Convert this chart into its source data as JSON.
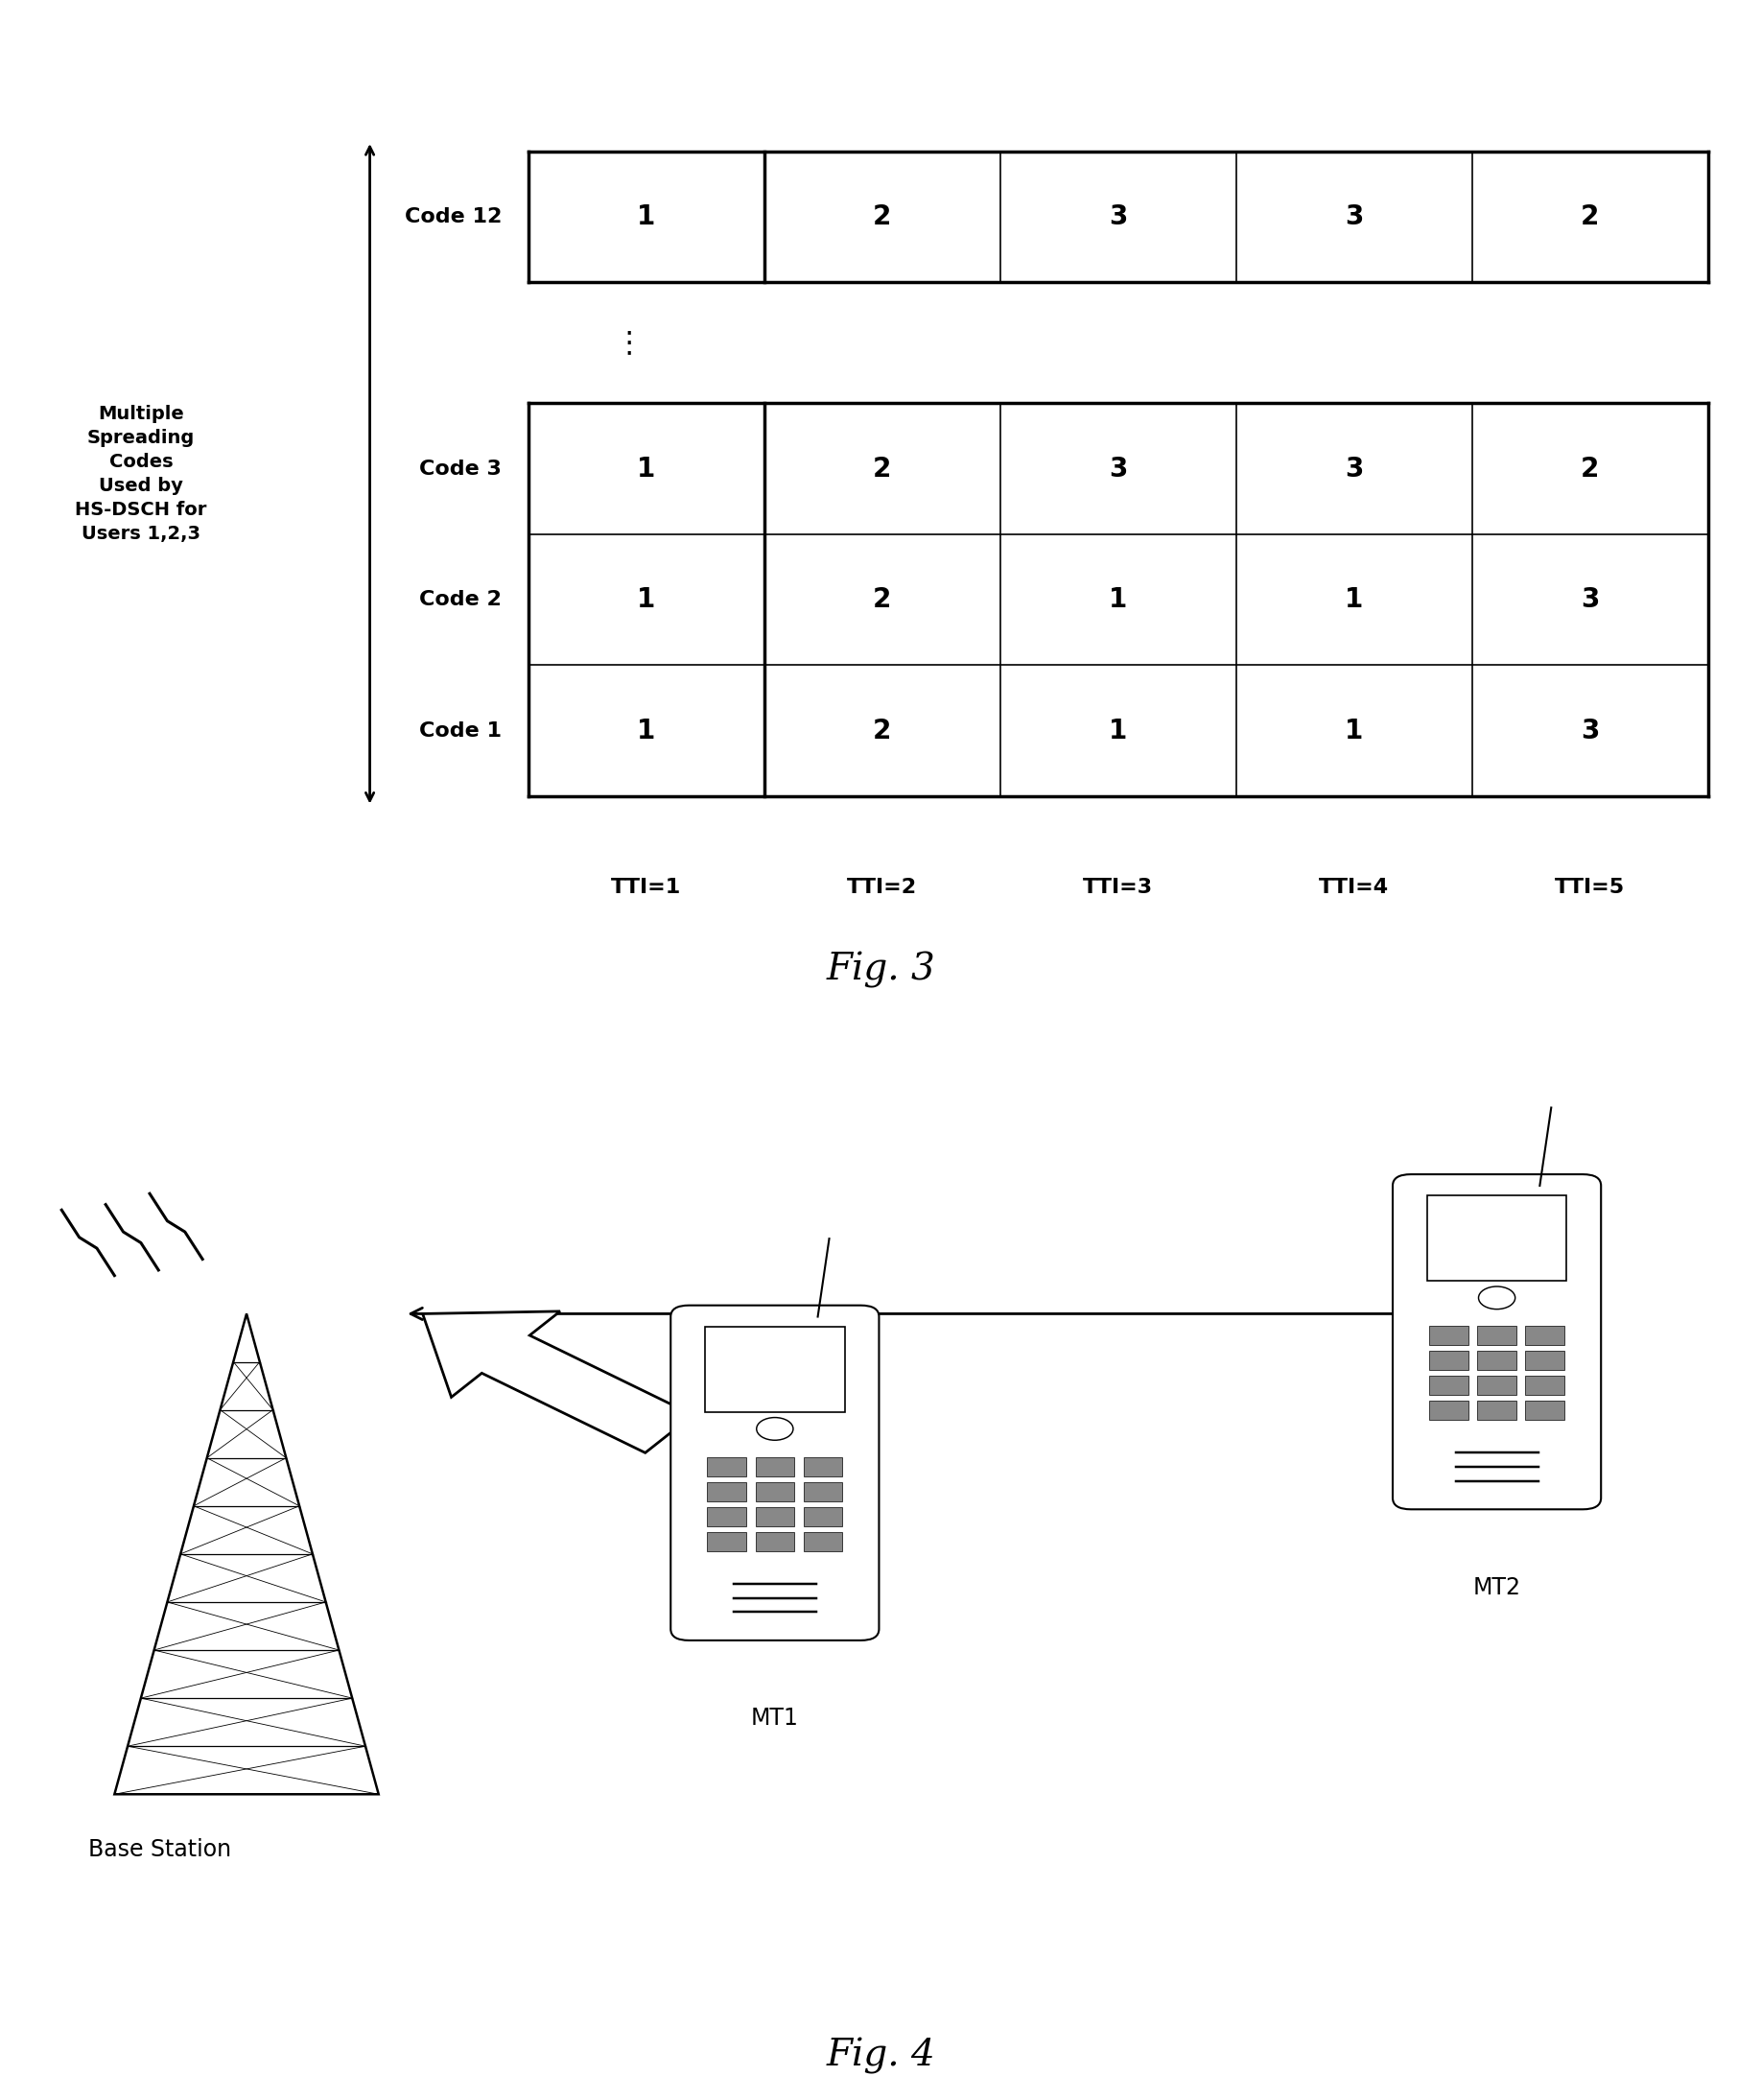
{
  "fig3_title": "Fig. 3",
  "fig4_title": "Fig. 4",
  "left_label": "Multiple\nSpreading\nCodes\nUsed by\nHS-DSCH for\nUsers 1,2,3",
  "tti_labels": [
    "TTI=1",
    "TTI=2",
    "TTI=3",
    "TTI=4",
    "TTI=5"
  ],
  "table_data": {
    "Code 12": [
      1,
      2,
      3,
      3,
      2
    ],
    "Code 3": [
      1,
      2,
      3,
      3,
      2
    ],
    "Code 2": [
      1,
      2,
      1,
      1,
      3
    ],
    "Code 1": [
      1,
      2,
      1,
      1,
      3
    ]
  },
  "bg_color": "#ffffff",
  "text_color": "#000000"
}
